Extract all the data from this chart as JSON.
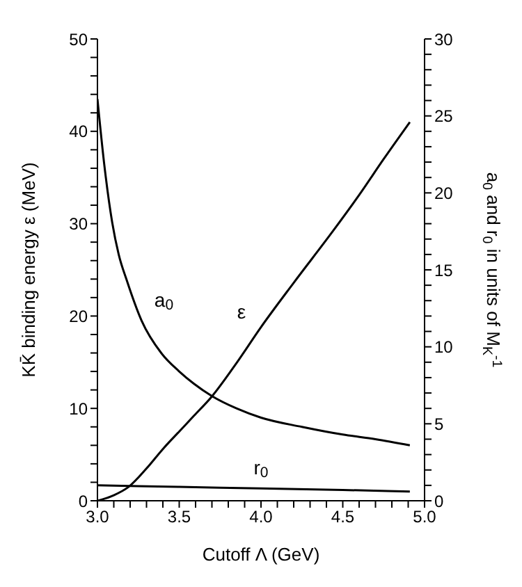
{
  "chart_data": {
    "type": "line",
    "xlabel": "Cutoff  Λ  (GeV)",
    "ylabel": "KK̄ binding  energy  ε  (MeV)",
    "y2label": "a$_{0}$ and r$_{0}$ in units of M$_{K}$$^{-1}$",
    "series": [
      {
        "name": "ε",
        "color": "#000000",
        "x": [
          3.0,
          3.1,
          3.19,
          3.3,
          3.4,
          3.5,
          3.59,
          3.7,
          3.85,
          4.0,
          4.2,
          4.44,
          4.6,
          4.75,
          4.91
        ],
        "values": [
          0,
          0.6,
          1.5,
          3.5,
          5.6,
          7.5,
          9.2,
          11.3,
          14.9,
          18.8,
          23.6,
          29.2,
          33.1,
          37.0,
          41.0
        ]
      },
      {
        "name": "a$_{0}$",
        "color": "#000000",
        "axis": "y2",
        "x": [
          3.0,
          3.04,
          3.09,
          3.13,
          3.18,
          3.27,
          3.39,
          3.5,
          3.59,
          3.7,
          3.85,
          4.0,
          4.25,
          4.5,
          4.7,
          4.91
        ],
        "values": [
          26.1,
          22.0,
          18.1,
          16.0,
          14.3,
          11.7,
          9.6,
          8.4,
          7.6,
          6.8,
          6.0,
          5.4,
          4.8,
          4.3,
          4.0,
          3.6
        ]
      },
      {
        "name": "r$_{0}$",
        "color": "#000000",
        "axis": "y2",
        "x": [
          3.0,
          3.5,
          4.0,
          4.5,
          4.91
        ],
        "values": [
          1.0,
          0.9,
          0.8,
          0.7,
          0.6
        ]
      }
    ],
    "xlim": [
      3.0,
      5.0
    ],
    "xticks": [
      {
        "value": 3.0,
        "label": "3.0"
      },
      {
        "value": 3.1,
        "label": null
      },
      {
        "value": 3.2,
        "label": null
      },
      {
        "value": 3.3,
        "label": null
      },
      {
        "value": 3.4,
        "label": null
      },
      {
        "value": 3.5,
        "label": "3.5"
      },
      {
        "value": 3.6,
        "label": null
      },
      {
        "value": 3.7,
        "label": null
      },
      {
        "value": 3.8,
        "label": null
      },
      {
        "value": 3.9,
        "label": null
      },
      {
        "value": 4.0,
        "label": "4.0"
      },
      {
        "value": 4.1,
        "label": null
      },
      {
        "value": 4.2,
        "label": null
      },
      {
        "value": 4.3,
        "label": null
      },
      {
        "value": 4.4,
        "label": null
      },
      {
        "value": 4.5,
        "label": "4.5"
      },
      {
        "value": 4.6,
        "label": null
      },
      {
        "value": 4.7,
        "label": null
      },
      {
        "value": 4.8,
        "label": null
      },
      {
        "value": 4.9,
        "label": null
      },
      {
        "value": 5.0,
        "label": "5.0"
      }
    ],
    "ylim": [
      0,
      50
    ],
    "yticks": [
      0,
      {
        "value": 2,
        "label": null
      },
      {
        "value": 4,
        "label": null
      },
      {
        "value": 6,
        "label": null
      },
      {
        "value": 8,
        "label": null
      },
      10,
      {
        "value": 12,
        "label": null
      },
      {
        "value": 14,
        "label": null
      },
      {
        "value": 16,
        "label": null
      },
      {
        "value": 18,
        "label": null
      },
      20,
      {
        "value": 22,
        "label": null
      },
      {
        "value": 24,
        "label": null
      },
      {
        "value": 26,
        "label": null
      },
      {
        "value": 28,
        "label": null
      },
      30,
      {
        "value": 32,
        "label": null
      },
      {
        "value": 34,
        "label": null
      },
      {
        "value": 36,
        "label": null
      },
      {
        "value": 38,
        "label": null
      },
      40,
      {
        "value": 42,
        "label": null
      },
      {
        "value": 44,
        "label": null
      },
      {
        "value": 46,
        "label": null
      },
      {
        "value": 48,
        "label": null
      },
      50
    ],
    "y2lim": [
      0,
      30
    ],
    "y2ticks": [
      0,
      {
        "value": 1,
        "label": null
      },
      {
        "value": 2,
        "label": null
      },
      {
        "value": 3,
        "label": null
      },
      {
        "value": 4,
        "label": null
      },
      5,
      {
        "value": 6,
        "label": null
      },
      {
        "value": 7,
        "label": null
      },
      {
        "value": 8,
        "label": null
      },
      {
        "value": 9,
        "label": null
      },
      10,
      {
        "value": 11,
        "label": null
      },
      {
        "value": 12,
        "label": null
      },
      {
        "value": 13,
        "label": null
      },
      {
        "value": 14,
        "label": null
      },
      15,
      {
        "value": 16,
        "label": null
      },
      {
        "value": 17,
        "label": null
      },
      {
        "value": 18,
        "label": null
      },
      {
        "value": 19,
        "label": null
      },
      20,
      {
        "value": 21,
        "label": null
      },
      {
        "value": 22,
        "label": null
      },
      {
        "value": 23,
        "label": null
      },
      {
        "value": 24,
        "label": null
      },
      25,
      {
        "value": 26,
        "label": null
      },
      {
        "value": 27,
        "label": null
      },
      {
        "value": 28,
        "label": null
      },
      {
        "value": 29,
        "label": null
      },
      30
    ],
    "grid": false,
    "legend": false,
    "marker": "none",
    "line_style": "solid"
  }
}
